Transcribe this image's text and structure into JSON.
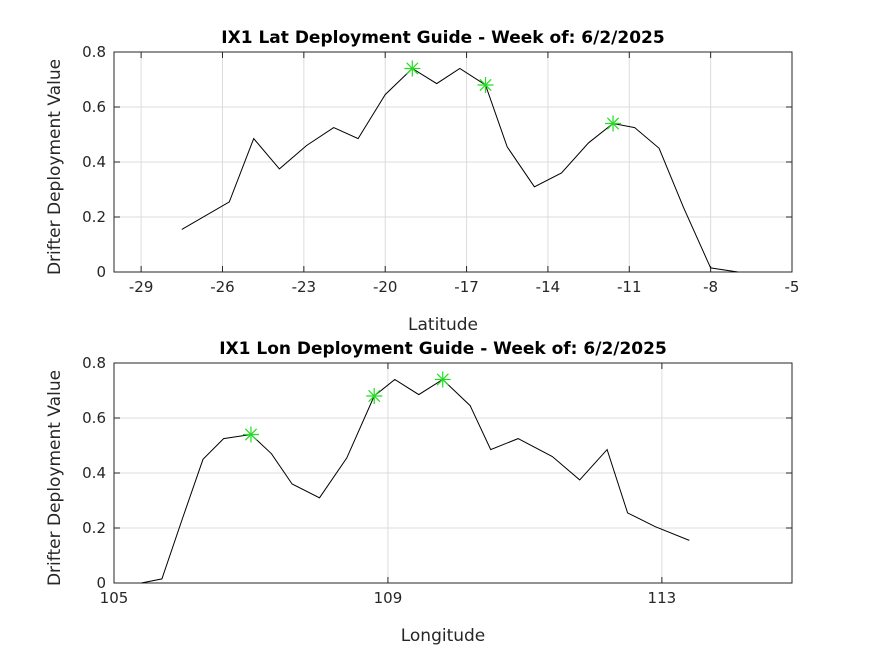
{
  "chart_data": [
    {
      "type": "line",
      "title": "IX1 Lat Deployment Guide - Week of: 6/2/2025",
      "xlabel": "Latitude",
      "ylabel": "Drifter Deployment Value",
      "xlim": [
        -30,
        -5
      ],
      "ylim": [
        0,
        0.8
      ],
      "xticks": [
        -29,
        -26,
        -23,
        -20,
        -17,
        -14,
        -11,
        -8,
        -5
      ],
      "yticks": [
        0,
        0.2,
        0.4,
        0.6,
        0.8
      ],
      "grid": true,
      "x": [
        -27.5,
        -25.75,
        -24.85,
        -23.9,
        -22.9,
        -21.9,
        -21.0,
        -20.0,
        -19.0,
        -18.1,
        -17.25,
        -16.3,
        -15.5,
        -14.5,
        -13.5,
        -12.5,
        -11.6,
        -10.8,
        -9.9,
        -9.0,
        -8.0,
        -7.0
      ],
      "y": [
        0.155,
        0.255,
        0.485,
        0.375,
        0.46,
        0.525,
        0.485,
        0.645,
        0.74,
        0.685,
        0.74,
        0.68,
        0.455,
        0.31,
        0.36,
        0.47,
        0.54,
        0.525,
        0.45,
        0.235,
        0.015,
        0.0
      ],
      "markers": {
        "symbol": "*",
        "color": "#22dd22",
        "x": [
          -19.0,
          -16.3,
          -11.6
        ],
        "y": [
          0.74,
          0.68,
          0.54
        ]
      }
    },
    {
      "type": "line",
      "title": "IX1 Lon Deployment Guide - Week of: 6/2/2025",
      "xlabel": "Longitude",
      "ylabel": "Drifter Deployment Value",
      "xlim": [
        105,
        114.9
      ],
      "ylim": [
        0,
        0.8
      ],
      "xticks": [
        105,
        109,
        113
      ],
      "yticks": [
        0,
        0.2,
        0.4,
        0.6,
        0.8
      ],
      "grid": true,
      "x": [
        105.4,
        105.7,
        106.0,
        106.3,
        106.6,
        107.0,
        107.3,
        107.6,
        108.0,
        108.4,
        108.8,
        109.1,
        109.45,
        109.8,
        110.2,
        110.5,
        110.9,
        111.4,
        111.8,
        112.2,
        112.5,
        112.9,
        113.4
      ],
      "y": [
        0.0,
        0.015,
        0.235,
        0.45,
        0.525,
        0.54,
        0.47,
        0.36,
        0.31,
        0.455,
        0.68,
        0.74,
        0.685,
        0.74,
        0.645,
        0.485,
        0.525,
        0.46,
        0.375,
        0.485,
        0.255,
        0.205,
        0.155
      ],
      "markers": {
        "symbol": "*",
        "color": "#22dd22",
        "x": [
          107.0,
          108.8,
          109.8
        ],
        "y": [
          0.54,
          0.68,
          0.74
        ]
      }
    }
  ]
}
